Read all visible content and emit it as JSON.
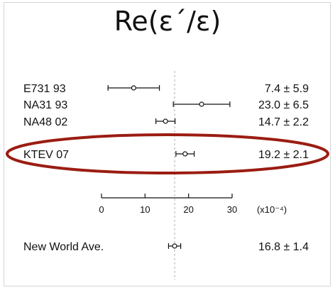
{
  "chart_data": {
    "type": "scatter",
    "title": "Re(ε´/ε)",
    "unit_label": "(x10⁻⁴)",
    "xlim": [
      0,
      30
    ],
    "x_ticks": [
      0,
      10,
      20,
      30
    ],
    "reference_x": 16.8,
    "highlighted_measurement": "KTEV 07",
    "highlight_color": "#9b1c12",
    "measurements": [
      {
        "label": "E731 93",
        "value": 7.4,
        "error": 5.9,
        "display": "7.4 ±  5.9"
      },
      {
        "label": "NA31 93",
        "value": 23.0,
        "error": 6.5,
        "display": "23.0 ±  6.5"
      },
      {
        "label": "NA48 02",
        "value": 14.7,
        "error": 2.2,
        "display": "14.7 ±  2.2"
      },
      {
        "label": "KTEV 07",
        "value": 19.2,
        "error": 2.1,
        "display": "19.2 ±  2.1"
      }
    ],
    "average": {
      "label": "New World Ave.",
      "value": 16.8,
      "error": 1.4,
      "display": "16.8 ±  1.4"
    }
  }
}
